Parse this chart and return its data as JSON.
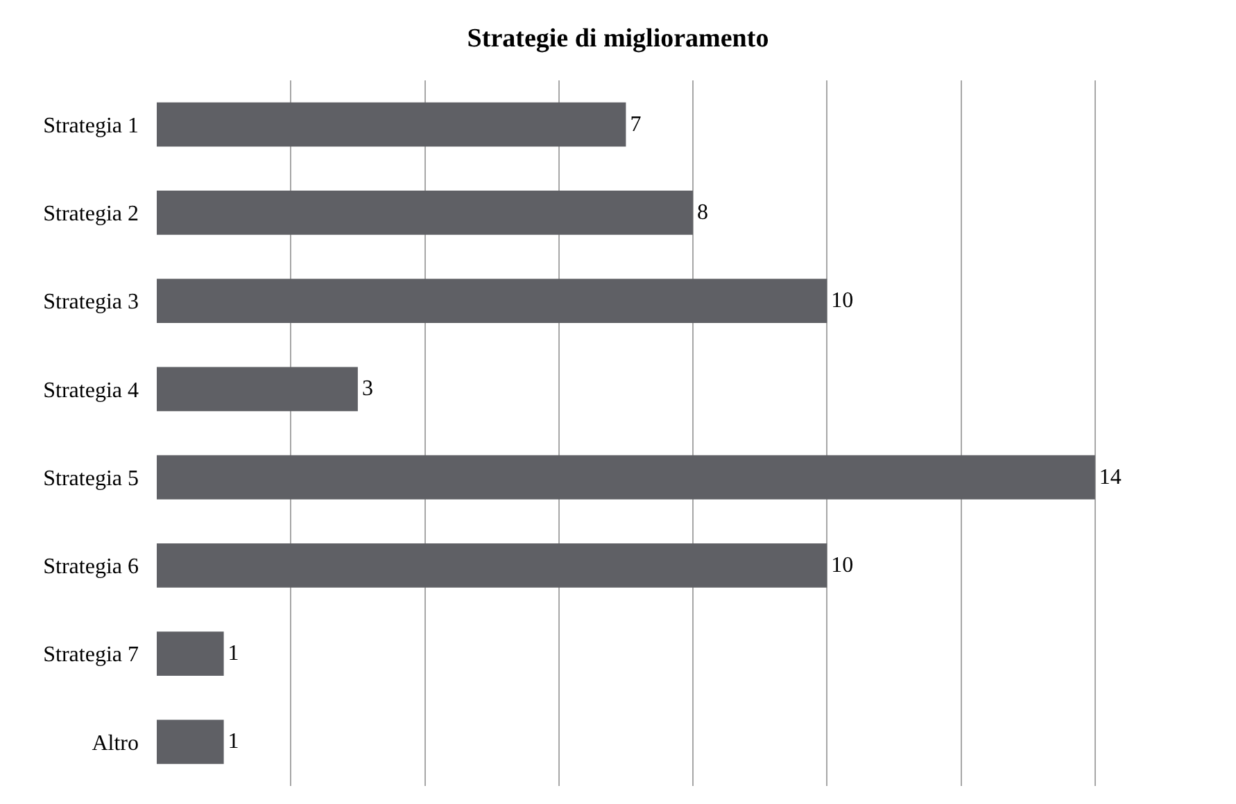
{
  "chart_data": {
    "type": "bar",
    "orientation": "horizontal",
    "title": "Strategie di miglioramento",
    "categories": [
      "Strategia 1",
      "Strategia 2",
      "Strategia 3",
      "Strategia 4",
      "Strategia 5",
      "Strategia 6",
      "Strategia 7",
      "Altro"
    ],
    "values": [
      7,
      8,
      10,
      3,
      14,
      10,
      1,
      1
    ],
    "color": "#5f6065",
    "grid": "x",
    "tick_labels": "y",
    "data_labels": true
  }
}
